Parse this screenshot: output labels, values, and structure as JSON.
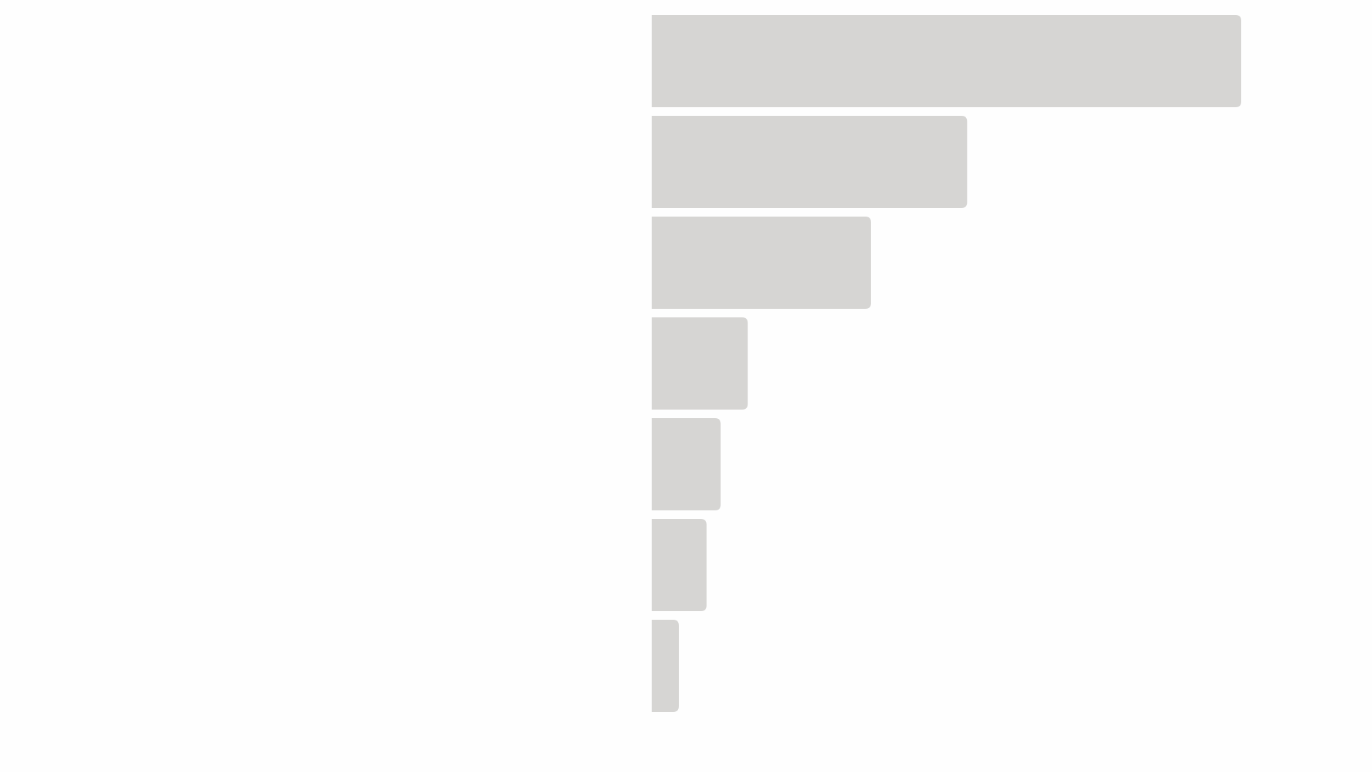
{
  "chart_data": {
    "type": "bar",
    "orientation": "horizontal",
    "values": [
      100,
      53.5,
      37.2,
      16.3,
      11.7,
      9.3,
      4.6
    ],
    "color": "#d6d5d3",
    "xlim": [
      0,
      100
    ],
    "grid": false
  }
}
